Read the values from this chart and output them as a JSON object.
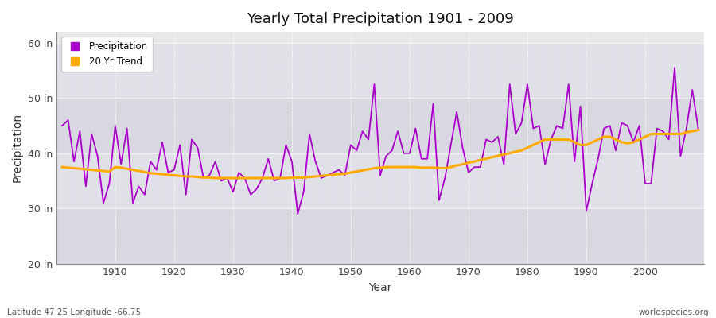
{
  "title": "Yearly Total Precipitation 1901 - 2009",
  "xlabel": "Year",
  "ylabel": "Precipitation",
  "lat_lon_label": "Latitude 47.25 Longitude -66.75",
  "watermark": "worldspecies.org",
  "ylim": [
    20,
    62
  ],
  "yticks": [
    20,
    30,
    40,
    50,
    60
  ],
  "ytick_labels": [
    "20 in",
    "30 in",
    "40 in",
    "50 in",
    "60 in"
  ],
  "xlim": [
    1900,
    2010
  ],
  "xticks": [
    1910,
    1920,
    1930,
    1940,
    1950,
    1960,
    1970,
    1980,
    1990,
    2000
  ],
  "precip_color": "#aa00cc",
  "trend_color": "#ffaa00",
  "fig_bg_color": "#ffffff",
  "plot_bg_color": "#e8e8e8",
  "plot_bg_band1": "#e0e0e8",
  "plot_bg_band2": "#d8d8e0",
  "years": [
    1901,
    1902,
    1903,
    1904,
    1905,
    1906,
    1907,
    1908,
    1909,
    1910,
    1911,
    1912,
    1913,
    1914,
    1915,
    1916,
    1917,
    1918,
    1919,
    1920,
    1921,
    1922,
    1923,
    1924,
    1925,
    1926,
    1927,
    1928,
    1929,
    1930,
    1931,
    1932,
    1933,
    1934,
    1935,
    1936,
    1937,
    1938,
    1939,
    1940,
    1941,
    1942,
    1943,
    1944,
    1945,
    1946,
    1947,
    1948,
    1949,
    1950,
    1951,
    1952,
    1953,
    1954,
    1955,
    1956,
    1957,
    1958,
    1959,
    1960,
    1961,
    1962,
    1963,
    1964,
    1965,
    1966,
    1967,
    1968,
    1969,
    1970,
    1971,
    1972,
    1973,
    1974,
    1975,
    1976,
    1977,
    1978,
    1979,
    1980,
    1981,
    1982,
    1983,
    1984,
    1985,
    1986,
    1987,
    1988,
    1989,
    1990,
    1991,
    1992,
    1993,
    1994,
    1995,
    1996,
    1997,
    1998,
    1999,
    2000,
    2001,
    2002,
    2003,
    2004,
    2005,
    2006,
    2007,
    2008,
    2009
  ],
  "precip": [
    45.0,
    46.0,
    38.5,
    44.0,
    34.0,
    43.5,
    39.5,
    31.0,
    34.5,
    45.0,
    38.0,
    44.5,
    31.0,
    34.0,
    32.5,
    38.5,
    37.0,
    42.0,
    36.5,
    37.0,
    41.5,
    32.5,
    42.5,
    41.0,
    35.5,
    36.0,
    38.5,
    35.0,
    35.5,
    33.0,
    36.5,
    35.5,
    32.5,
    33.5,
    35.5,
    39.0,
    35.0,
    35.5,
    41.5,
    38.5,
    29.0,
    33.0,
    43.5,
    38.5,
    35.5,
    36.0,
    36.5,
    37.0,
    36.0,
    41.5,
    40.5,
    44.0,
    42.5,
    52.5,
    36.0,
    39.5,
    40.5,
    44.0,
    40.0,
    40.0,
    44.5,
    39.0,
    39.0,
    49.0,
    31.5,
    35.5,
    41.5,
    47.5,
    41.0,
    36.5,
    37.5,
    37.5,
    42.5,
    42.0,
    43.0,
    38.0,
    52.5,
    43.5,
    45.5,
    52.5,
    44.5,
    45.0,
    38.0,
    42.5,
    45.0,
    44.5,
    52.5,
    38.5,
    48.5,
    29.5,
    34.5,
    39.0,
    44.5,
    45.0,
    40.5,
    45.5,
    45.0,
    42.0,
    45.0,
    34.5,
    34.5,
    44.5,
    44.0,
    42.5,
    55.5,
    39.5,
    44.5,
    51.5,
    44.5
  ],
  "trend": [
    37.5,
    37.4,
    37.3,
    37.2,
    37.1,
    37.0,
    36.9,
    36.8,
    36.7,
    37.5,
    37.4,
    37.2,
    37.0,
    36.8,
    36.6,
    36.4,
    36.3,
    36.2,
    36.1,
    36.0,
    35.9,
    35.8,
    35.8,
    35.7,
    35.6,
    35.6,
    35.5,
    35.5,
    35.5,
    35.5,
    35.5,
    35.5,
    35.5,
    35.5,
    35.5,
    35.5,
    35.5,
    35.5,
    35.5,
    35.6,
    35.6,
    35.6,
    35.7,
    35.8,
    35.9,
    36.0,
    36.1,
    36.2,
    36.3,
    36.5,
    36.7,
    36.9,
    37.1,
    37.3,
    37.4,
    37.5,
    37.5,
    37.5,
    37.5,
    37.5,
    37.5,
    37.4,
    37.4,
    37.4,
    37.3,
    37.3,
    37.5,
    37.8,
    38.0,
    38.3,
    38.5,
    38.8,
    39.0,
    39.3,
    39.5,
    39.8,
    40.0,
    40.3,
    40.5,
    41.0,
    41.5,
    42.0,
    42.5,
    42.5,
    42.5,
    42.5,
    42.5,
    42.0,
    41.5,
    41.5,
    42.0,
    42.5,
    43.0,
    43.0,
    42.5,
    42.0,
    41.8,
    42.0,
    42.5,
    43.0,
    43.5,
    43.5,
    43.5,
    43.5,
    43.5,
    43.5,
    43.8,
    44.0,
    44.2
  ]
}
